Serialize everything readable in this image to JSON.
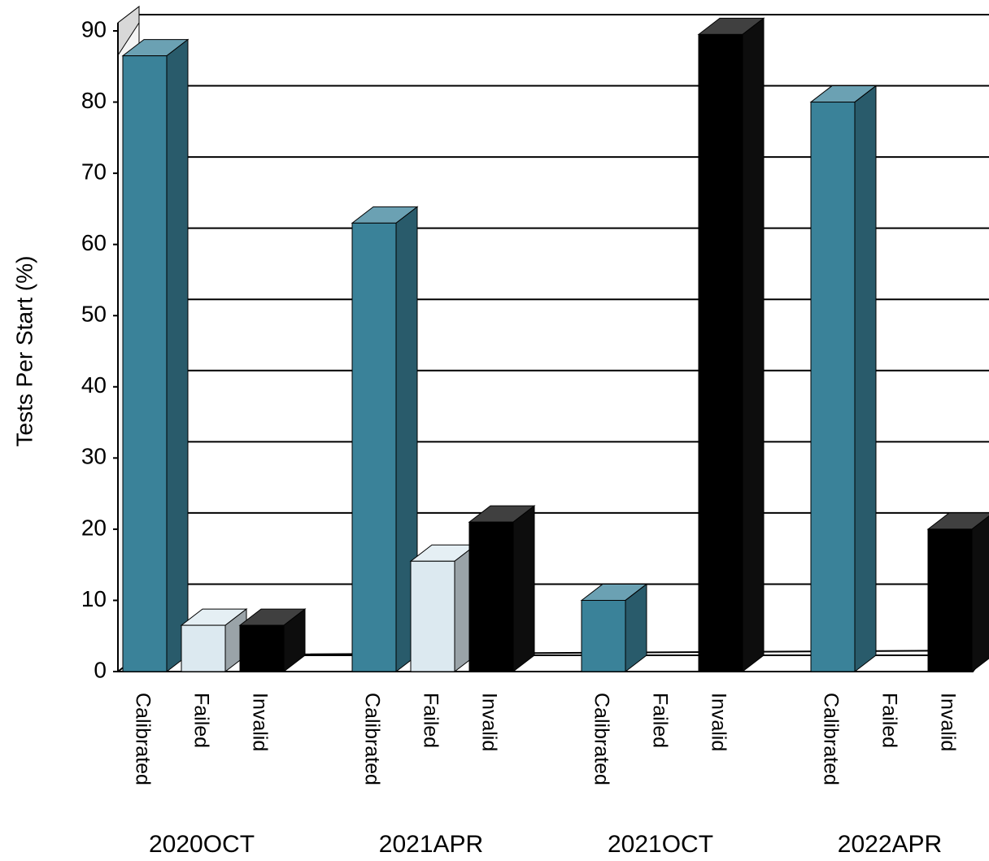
{
  "chart_data": {
    "type": "bar3d",
    "y_label": "Tests Per Start (%)",
    "categories": [
      "2020OCT",
      "2021APR",
      "2021OCT",
      "2022APR"
    ],
    "series": [
      {
        "name": "Calibrated",
        "color": "#3a8299",
        "values": [
          86.5,
          63,
          10,
          80
        ]
      },
      {
        "name": "Failed",
        "color": "#dce9f0",
        "values": [
          6.5,
          15.5,
          0,
          0
        ]
      },
      {
        "name": "Invalid",
        "color": "#000000",
        "values": [
          6.5,
          21,
          89.5,
          20
        ]
      }
    ],
    "ylim": [
      0,
      90
    ],
    "yticks": [
      0,
      10,
      20,
      30,
      40,
      50,
      60,
      70,
      80,
      90
    ],
    "grid": true
  }
}
